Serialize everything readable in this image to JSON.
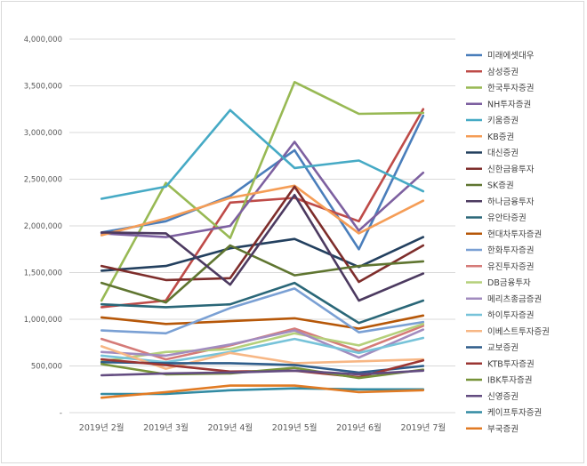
{
  "chart_data": {
    "type": "line",
    "title": "",
    "xlabel": "",
    "ylabel": "",
    "ylim": [
      0,
      4000000
    ],
    "yticks": [
      0,
      500000,
      1000000,
      1500000,
      2000000,
      2500000,
      3000000,
      3500000,
      4000000
    ],
    "ytick_labels": [
      "-",
      "500,000",
      "1,000,000",
      "1,500,000",
      "2,000,000",
      "2,500,000",
      "3,000,000",
      "3,500,000",
      "4,000,000"
    ],
    "grid": true,
    "legend_position": "right",
    "categories": [
      "2019년 2월",
      "2019년 3월",
      "2019년 4월",
      "2019년 5월",
      "2019년 6월",
      "2019년 7월"
    ],
    "series": [
      {
        "name": "미래에셋대우",
        "color": "#4a7ebb",
        "values": [
          1930000,
          2050000,
          2320000,
          2810000,
          1750000,
          3180000
        ]
      },
      {
        "name": "삼성증권",
        "color": "#be4b48",
        "values": [
          1130000,
          1200000,
          2250000,
          2300000,
          2050000,
          3250000
        ]
      },
      {
        "name": "한국투자증권",
        "color": "#98b954",
        "values": [
          1200000,
          2460000,
          1870000,
          3540000,
          3200000,
          3210000
        ]
      },
      {
        "name": "NH투자증권",
        "color": "#7d60a0",
        "values": [
          1920000,
          1880000,
          2000000,
          2900000,
          1950000,
          2570000
        ]
      },
      {
        "name": "키움증권",
        "color": "#46aac5",
        "values": [
          2290000,
          2420000,
          3240000,
          2620000,
          2700000,
          2370000
        ]
      },
      {
        "name": "KB증권",
        "color": "#f59d56",
        "values": [
          1900000,
          2080000,
          2300000,
          2430000,
          1920000,
          2270000
        ]
      },
      {
        "name": "대신증권",
        "color": "#23405f",
        "values": [
          1520000,
          1570000,
          1760000,
          1860000,
          1560000,
          1880000
        ]
      },
      {
        "name": "신한금융투자",
        "color": "#7e2d2b",
        "values": [
          1570000,
          1420000,
          1440000,
          2420000,
          1400000,
          1790000
        ]
      },
      {
        "name": "SK증권",
        "color": "#5f7530",
        "values": [
          1390000,
          1180000,
          1790000,
          1470000,
          1570000,
          1620000
        ]
      },
      {
        "name": "하나금융투자",
        "color": "#4c3a60",
        "values": [
          1930000,
          1920000,
          1370000,
          2330000,
          1200000,
          1490000
        ]
      },
      {
        "name": "유안타증권",
        "color": "#2a6778",
        "values": [
          1160000,
          1130000,
          1160000,
          1390000,
          960000,
          1200000
        ]
      },
      {
        "name": "현대차투자증권",
        "color": "#b65708",
        "values": [
          1020000,
          950000,
          980000,
          1010000,
          900000,
          1040000
        ]
      },
      {
        "name": "한화투자증권",
        "color": "#7aa0d4",
        "values": [
          880000,
          850000,
          1120000,
          1330000,
          860000,
          970000
        ]
      },
      {
        "name": "유진투자증권",
        "color": "#d57b78",
        "values": [
          790000,
          570000,
          720000,
          900000,
          660000,
          930000
        ]
      },
      {
        "name": "DB금융투자",
        "color": "#b5d07b",
        "values": [
          550000,
          650000,
          680000,
          850000,
          720000,
          950000
        ]
      },
      {
        "name": "메리츠종금증권",
        "color": "#a28cbf",
        "values": [
          650000,
          610000,
          730000,
          880000,
          590000,
          890000
        ]
      },
      {
        "name": "하이투자증권",
        "color": "#77c3d9",
        "values": [
          610000,
          540000,
          650000,
          790000,
          640000,
          800000
        ]
      },
      {
        "name": "이베스트투자증권",
        "color": "#f7b785",
        "values": [
          710000,
          470000,
          640000,
          530000,
          550000,
          570000
        ]
      },
      {
        "name": "교보증권",
        "color": "#2e5c8a",
        "values": [
          540000,
          530000,
          530000,
          510000,
          430000,
          500000
        ]
      },
      {
        "name": "KTB투자증권",
        "color": "#9b3633",
        "values": [
          570000,
          510000,
          440000,
          450000,
          380000,
          560000
        ]
      },
      {
        "name": "IBK투자증권",
        "color": "#779339",
        "values": [
          520000,
          410000,
          420000,
          480000,
          370000,
          460000
        ]
      },
      {
        "name": "신영증권",
        "color": "#634c80",
        "values": [
          400000,
          420000,
          430000,
          450000,
          410000,
          450000
        ]
      },
      {
        "name": "케이프투자증권",
        "color": "#338ba3",
        "values": [
          200000,
          200000,
          240000,
          260000,
          250000,
          250000
        ]
      },
      {
        "name": "부국증권",
        "color": "#e17b24",
        "values": [
          160000,
          220000,
          290000,
          290000,
          220000,
          240000
        ]
      }
    ]
  }
}
